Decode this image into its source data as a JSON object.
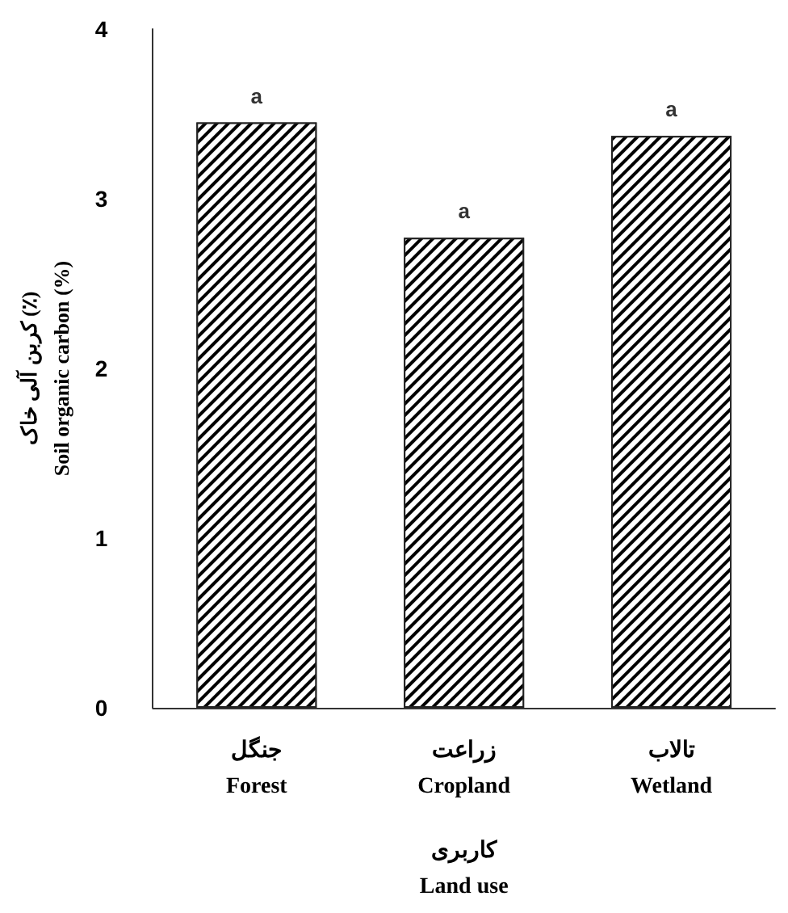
{
  "chart_data": {
    "type": "bar",
    "categories": [
      "جنگل\nForest",
      "زراعت\nCropland",
      "تالاب\nWetland"
    ],
    "values": [
      3.45,
      2.77,
      3.37
    ],
    "color": "#000000",
    "xlabel": "کاربری\nLand use",
    "ylabel": "کربن آلی خاک (٪)\nSoil organic carbon (%)",
    "ylim": [
      0,
      4
    ],
    "yticks": [
      0,
      1,
      2,
      3,
      4
    ],
    "annotations": [
      {
        "text": "a",
        "x": "جنگل\nForest",
        "y": 3.45
      },
      {
        "text": "a",
        "x": "زراعت\nCropland",
        "y": 2.77
      },
      {
        "text": "a",
        "x": "تالاب\nWetland",
        "y": 3.37
      }
    ],
    "grid": false
  }
}
